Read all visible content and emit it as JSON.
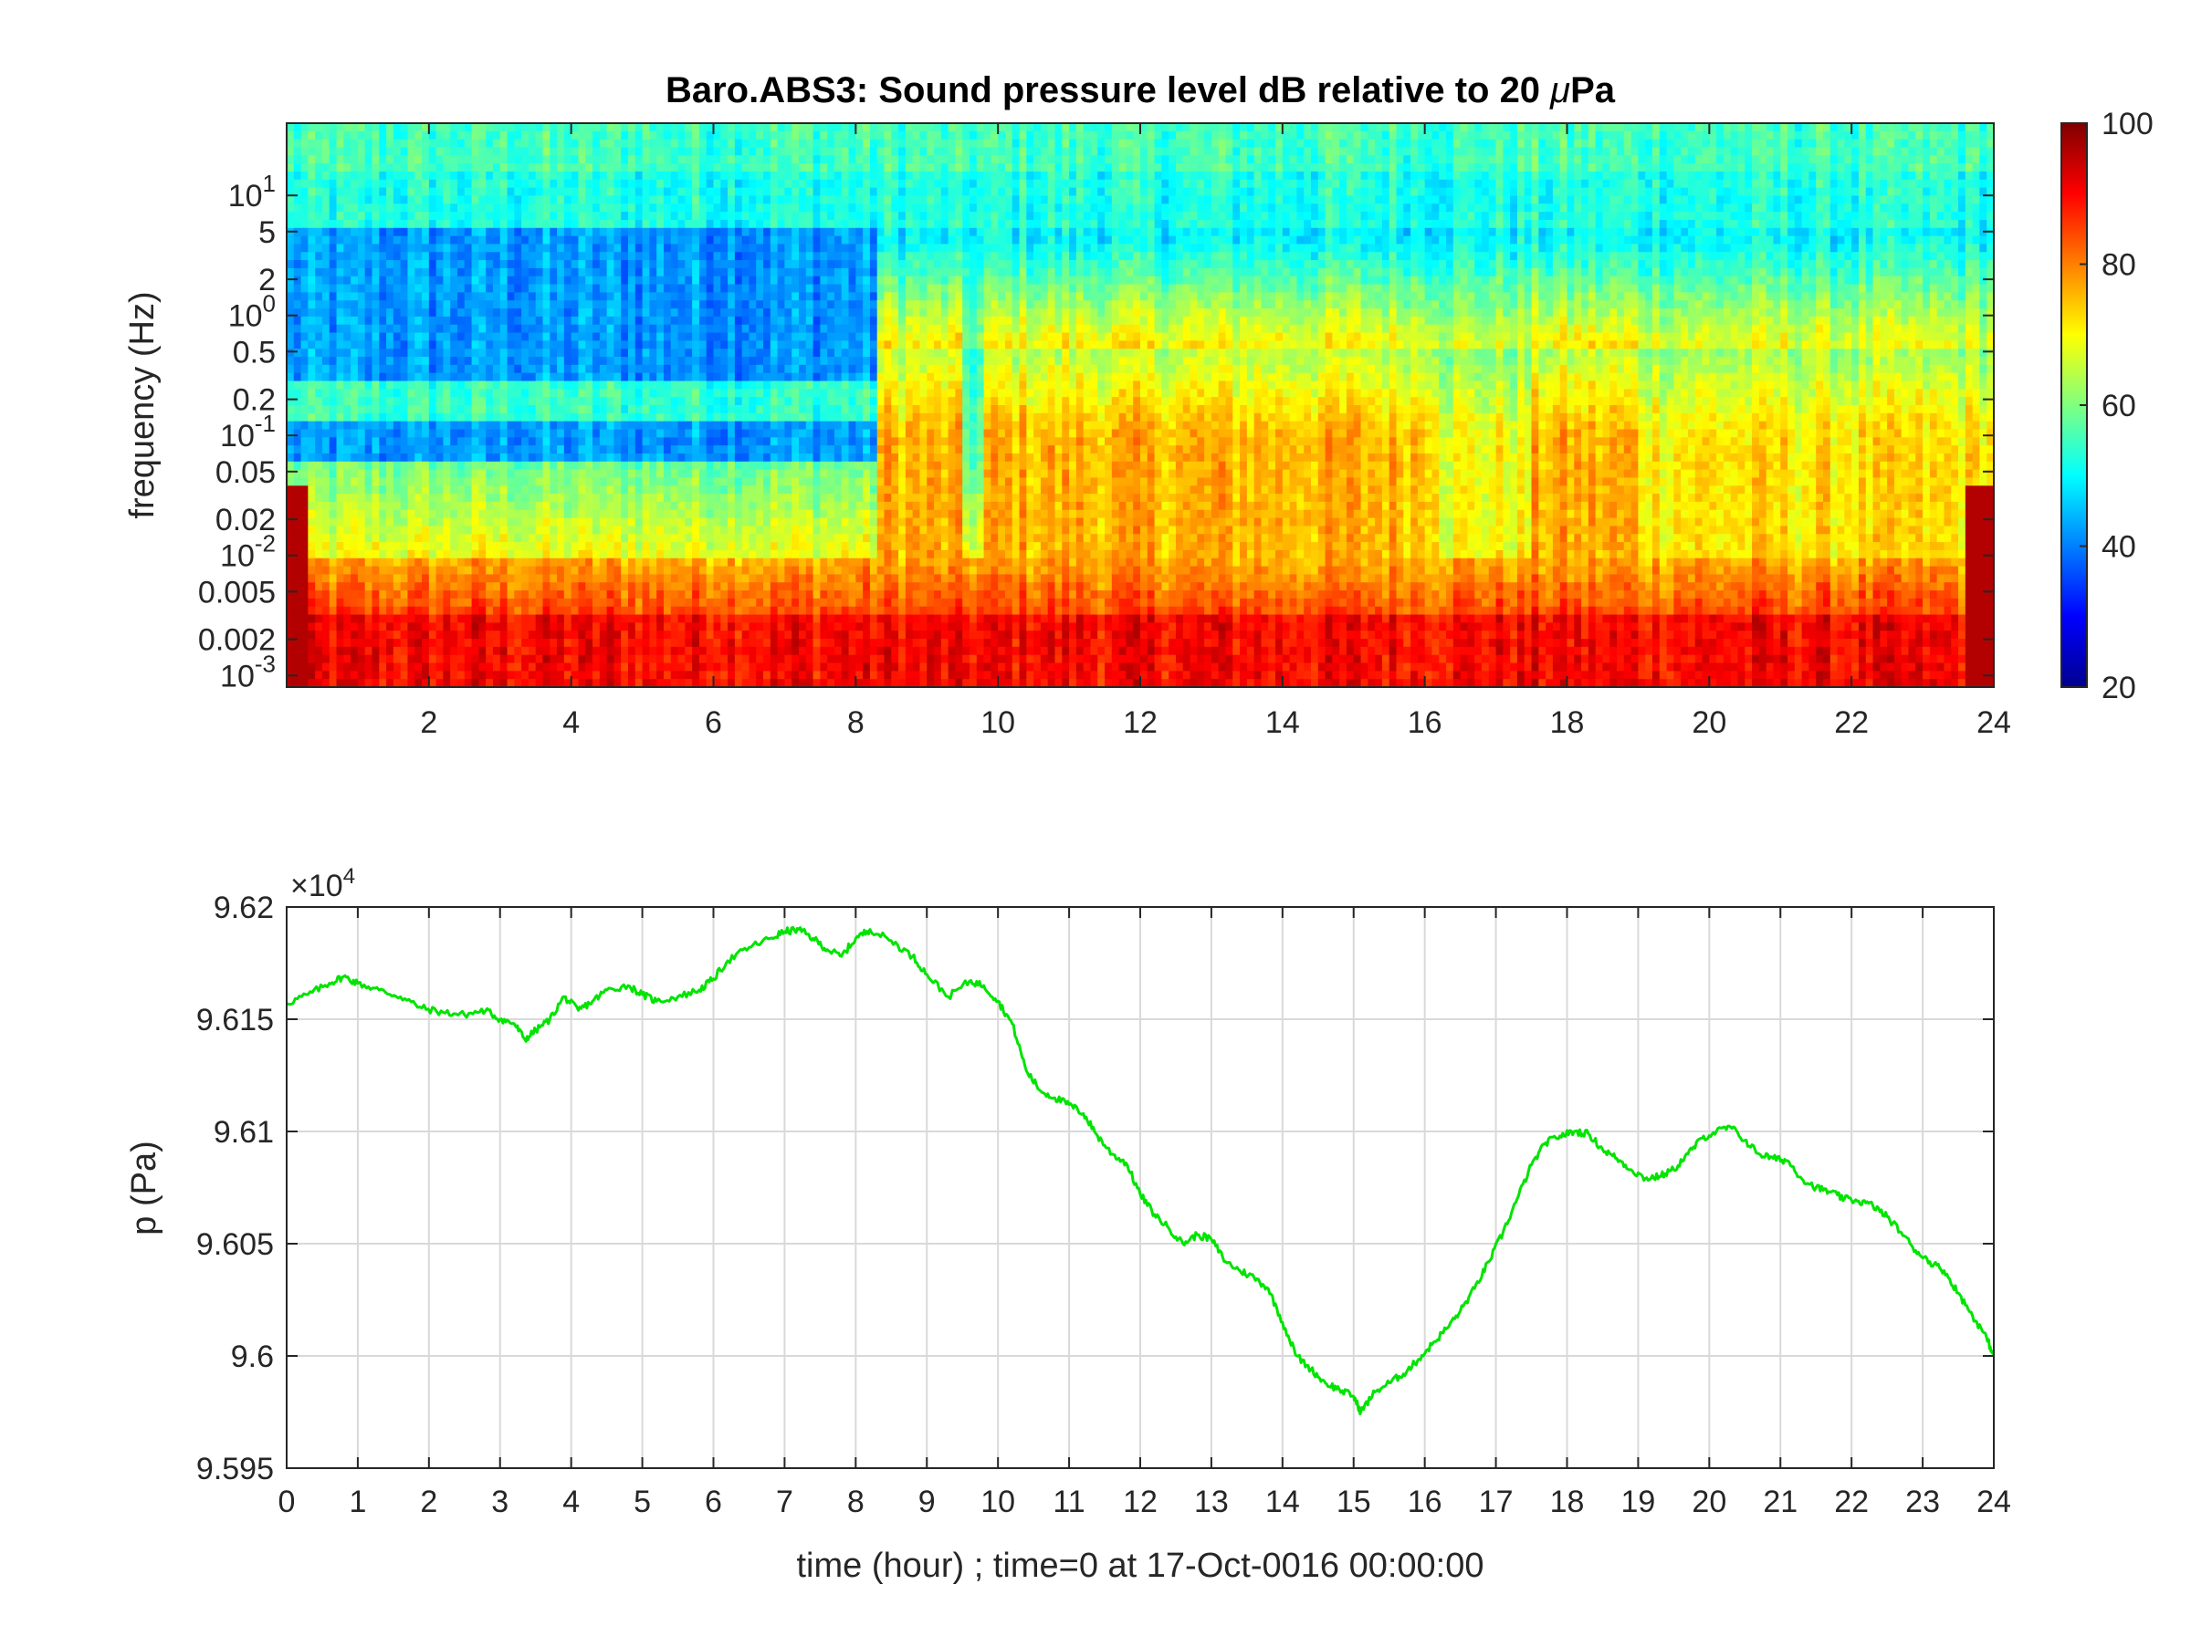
{
  "chart_data": [
    {
      "type": "heatmap",
      "title_main": "Baro.ABS3: Sound pressure level dB relative to 20 ",
      "title_mu": "μ",
      "title_tail": "Pa",
      "ylabel": "frequency (Hz)",
      "y_scale": "log",
      "ylim_hz": [
        0.0008,
        40
      ],
      "xlim": [
        0,
        24
      ],
      "x_ticks": [
        "2",
        "4",
        "6",
        "8",
        "10",
        "12",
        "14",
        "16",
        "18",
        "20",
        "22",
        "24"
      ],
      "y_ticks": [
        {
          "value": 10,
          "base": "10",
          "exp": "1"
        },
        {
          "value": 5,
          "label": "5"
        },
        {
          "value": 2,
          "label": "2"
        },
        {
          "value": 1,
          "base": "10",
          "exp": "0"
        },
        {
          "value": 0.5,
          "label": "0.5"
        },
        {
          "value": 0.2,
          "label": "0.2"
        },
        {
          "value": 0.1,
          "base": "10",
          "exp": "-1"
        },
        {
          "value": 0.05,
          "label": "0.05"
        },
        {
          "value": 0.02,
          "label": "0.02"
        },
        {
          "value": 0.01,
          "base": "10",
          "exp": "-2"
        },
        {
          "value": 0.005,
          "label": "0.005"
        },
        {
          "value": 0.002,
          "label": "0.002"
        },
        {
          "value": 0.001,
          "base": "10",
          "exp": "-3"
        }
      ],
      "colorbar": {
        "colormap": "jet",
        "clim": [
          20,
          100
        ],
        "ticks": [
          "20",
          "40",
          "60",
          "80",
          "100"
        ]
      }
    },
    {
      "type": "line",
      "ylabel": "p (Pa)",
      "xlabel": "time (hour) ; time=0 at 17-Oct-0016 00:00:00",
      "exponent_label": "×10",
      "exponent_power": "4",
      "xlim": [
        0,
        24
      ],
      "ylim": [
        95950,
        96200
      ],
      "x_ticks": [
        "0",
        "1",
        "2",
        "3",
        "4",
        "5",
        "6",
        "7",
        "8",
        "9",
        "10",
        "11",
        "12",
        "13",
        "14",
        "15",
        "16",
        "17",
        "18",
        "19",
        "20",
        "21",
        "22",
        "23",
        "24"
      ],
      "y_ticks": [
        {
          "value": 96200,
          "label": "9.62"
        },
        {
          "value": 96150,
          "label": "9.615"
        },
        {
          "value": 96100,
          "label": "9.61"
        },
        {
          "value": 96050,
          "label": "9.605"
        },
        {
          "value": 96000,
          "label": "9.6"
        },
        {
          "value": 95950,
          "label": "9.595"
        }
      ],
      "grid": true,
      "line_color": "#00e400",
      "series": [
        {
          "x": [
            0,
            0.3,
            0.6,
            0.8,
            1.0,
            1.3,
            1.6,
            1.9,
            2.2,
            2.5,
            2.8,
            3.0,
            3.2,
            3.35,
            3.5,
            3.7,
            3.9,
            4.1,
            4.3,
            4.5,
            4.8,
            5.0,
            5.2,
            5.5,
            5.8,
            6.0,
            6.2,
            6.5,
            6.8,
            7.0,
            7.2,
            7.4,
            7.6,
            7.8,
            8.0,
            8.2,
            8.5,
            8.8,
            9.0,
            9.3,
            9.6,
            9.8,
            10.0,
            10.2,
            10.4,
            10.6,
            10.8,
            11.0,
            11.2,
            11.4,
            11.6,
            11.8,
            12.0,
            12.2,
            12.4,
            12.6,
            12.8,
            13.0,
            13.2,
            13.4,
            13.6,
            13.8,
            14.0,
            14.2,
            14.4,
            14.6,
            14.8,
            15.0,
            15.1,
            15.3,
            15.5,
            15.7,
            15.9,
            16.1,
            16.3,
            16.5,
            16.7,
            16.9,
            17.1,
            17.3,
            17.5,
            17.7,
            17.9,
            18.1,
            18.3,
            18.5,
            18.7,
            18.9,
            19.1,
            19.3,
            19.5,
            19.7,
            19.9,
            20.1,
            20.3,
            20.5,
            20.7,
            20.9,
            21.1,
            21.3,
            21.5,
            21.7,
            21.9,
            22.1,
            22.3,
            22.5,
            22.7,
            22.9,
            23.1,
            23.3,
            23.5,
            23.7,
            23.9,
            24.0
          ],
          "y": [
            96157,
            96161,
            96166,
            96169,
            96166,
            96163,
            96160,
            96155,
            96153,
            96152,
            96154,
            96150,
            96148,
            96141,
            96145,
            96150,
            96160,
            96154,
            96158,
            96163,
            96165,
            96161,
            96158,
            96160,
            96163,
            96168,
            96176,
            96182,
            96186,
            96189,
            96190,
            96186,
            96181,
            96178,
            96186,
            96190,
            96185,
            96178,
            96170,
            96160,
            96167,
            96165,
            96158,
            96148,
            96127,
            96118,
            96115,
            96112,
            96108,
            96098,
            96090,
            96086,
            96072,
            96063,
            96057,
            96050,
            96054,
            96052,
            96042,
            96038,
            96035,
            96030,
            96015,
            96000,
            95994,
            95988,
            95985,
            95982,
            95975,
            95984,
            95988,
            95992,
            95998,
            96005,
            96012,
            96020,
            96030,
            96042,
            96055,
            96070,
            96085,
            96095,
            96098,
            96100,
            96099,
            96092,
            96088,
            96083,
            96079,
            96080,
            96083,
            96090,
            96097,
            96100,
            96102,
            96096,
            96090,
            96088,
            96087,
            96079,
            96075,
            96073,
            96070,
            96069,
            96067,
            96062,
            96055,
            96047,
            96042,
            96038,
            96028,
            96018,
            96008,
            96000
          ]
        }
      ]
    }
  ]
}
